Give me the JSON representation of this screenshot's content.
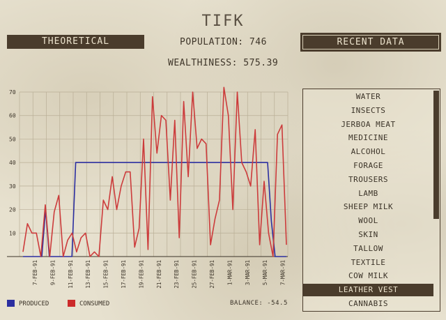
{
  "header": {
    "title": "TIFK"
  },
  "buttons": {
    "theoretical": "THEORETICAL",
    "recent_data": "RECENT DATA"
  },
  "stats": {
    "population": "POPULATION: 746",
    "wealthiness": "WEALTHINESS: 575.39"
  },
  "legend": {
    "produced": "PRODUCED",
    "consumed": "CONSUMED"
  },
  "balance": "BALANCE: -54.5",
  "colors": {
    "produced": "#2b2ea0",
    "consumed": "#cc3b3b",
    "panel": "#4a3c2c",
    "grid": "#b9ae96"
  },
  "chart_data": {
    "type": "line",
    "ylim": [
      0,
      70
    ],
    "y_ticks": [
      0,
      10,
      20,
      30,
      40,
      50,
      60,
      70
    ],
    "x_tick_labels": [
      "7-FEB-91",
      "9-FEB-91",
      "11-FEB-91",
      "13-FEB-91",
      "15-FEB-91",
      "17-FEB-91",
      "19-FEB-91",
      "21-FEB-91",
      "23-FEB-91",
      "25-FEB-91",
      "27-FEB-91",
      "1-MAR-91",
      "3-MAR-91",
      "5-MAR-91",
      "7-MAR-91"
    ],
    "series": [
      {
        "name": "PRODUCED",
        "values": [
          0,
          0,
          0,
          0,
          0,
          0,
          20,
          0,
          0,
          0,
          0,
          0,
          0,
          0,
          40,
          40,
          40,
          40,
          40,
          40,
          40,
          40,
          40,
          40,
          40,
          40,
          40,
          40,
          40,
          40,
          40,
          40,
          40,
          40,
          40,
          40,
          40,
          40,
          40,
          40,
          40,
          40,
          40,
          40,
          40,
          40,
          40,
          40,
          40,
          40,
          40,
          40,
          40,
          40,
          40,
          40,
          40,
          40,
          40,
          40,
          40,
          40,
          40,
          40,
          40,
          40,
          15,
          0,
          0,
          0,
          0
        ]
      },
      {
        "name": "CONSUMED",
        "values": [
          2,
          14,
          10,
          10,
          0,
          22,
          0,
          19,
          26,
          0,
          7,
          10,
          2,
          8,
          10,
          0,
          2,
          0,
          24,
          20,
          34,
          20,
          30,
          36,
          36,
          4,
          12,
          50,
          3,
          68,
          44,
          60,
          58,
          24,
          58,
          8,
          66,
          34,
          70,
          46,
          50,
          48,
          5,
          16,
          24,
          72,
          60,
          20,
          70,
          40,
          36,
          30,
          54,
          5,
          32,
          10,
          0,
          52,
          56,
          5
        ]
      }
    ]
  },
  "resources": {
    "items": [
      "WATER",
      "INSECTS",
      "JERBOA MEAT",
      "MEDICINE",
      "ALCOHOL",
      "FORAGE",
      "TROUSERS",
      "LAMB",
      "SHEEP MILK",
      "WOOL",
      "SKIN",
      "TALLOW",
      "TEXTILE",
      "COW MILK",
      "LEATHER VEST",
      "CANNABIS"
    ],
    "selected": "LEATHER VEST"
  }
}
